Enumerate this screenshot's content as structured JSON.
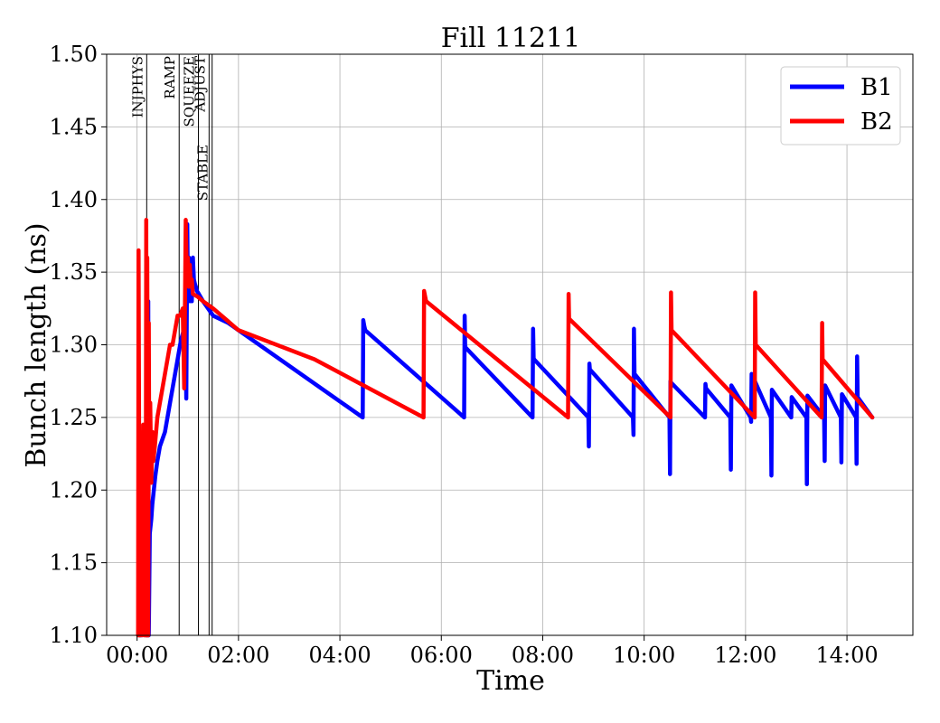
{
  "chart_data": {
    "type": "line",
    "title": "Fill 11211",
    "xlabel": "Time",
    "ylabel": "Bunch length (ns)",
    "x_unit": "hours",
    "xlim": [
      -0.6,
      15.3
    ],
    "ylim": [
      1.1,
      1.5
    ],
    "xticks": [
      {
        "value": 0,
        "label": "00:00"
      },
      {
        "value": 2,
        "label": "02:00"
      },
      {
        "value": 4,
        "label": "04:00"
      },
      {
        "value": 6,
        "label": "06:00"
      },
      {
        "value": 8,
        "label": "08:00"
      },
      {
        "value": 10,
        "label": "10:00"
      },
      {
        "value": 12,
        "label": "12:00"
      },
      {
        "value": 14,
        "label": "14:00"
      }
    ],
    "yticks": [
      {
        "value": 1.1,
        "label": "1.10"
      },
      {
        "value": 1.15,
        "label": "1.15"
      },
      {
        "value": 1.2,
        "label": "1.20"
      },
      {
        "value": 1.25,
        "label": "1.25"
      },
      {
        "value": 1.3,
        "label": "1.30"
      },
      {
        "value": 1.35,
        "label": "1.35"
      },
      {
        "value": 1.4,
        "label": "1.40"
      },
      {
        "value": 1.45,
        "label": "1.45"
      },
      {
        "value": 1.5,
        "label": "1.50"
      }
    ],
    "grid": true,
    "legend_position": "top-right",
    "phase_markers": [
      {
        "label": "INJPHYS",
        "x": 0.19,
        "label_level": "top"
      },
      {
        "label": "RAMP",
        "x": 0.83,
        "label_level": "top"
      },
      {
        "label": "SQUEEZE",
        "x": 1.21,
        "label_level": "top"
      },
      {
        "label": "ADJUST",
        "x": 1.42,
        "label_level": "top"
      },
      {
        "label": "STABLE",
        "x": 1.48,
        "label_level": "lower"
      }
    ],
    "series": [
      {
        "name": "B1",
        "color": "#0000ff",
        "x": [
          0.05,
          0.08,
          0.1,
          0.12,
          0.14,
          0.16,
          0.18,
          0.2,
          0.22,
          0.23,
          0.25,
          0.28,
          0.3,
          0.33,
          0.36,
          0.4,
          0.45,
          0.5,
          0.55,
          0.6,
          0.65,
          0.7,
          0.75,
          0.8,
          0.85,
          0.88,
          0.92,
          0.95,
          0.97,
          0.99,
          1.0,
          1.02,
          1.04,
          1.06,
          1.08,
          1.1,
          1.12,
          1.14,
          1.16,
          1.18,
          1.2,
          1.3,
          1.5,
          1.8,
          2.0,
          4.45,
          4.46,
          4.48,
          4.5,
          6.45,
          6.46,
          6.47,
          6.48,
          7.8,
          7.81,
          7.82,
          7.83,
          8.9,
          8.91,
          8.92,
          8.93,
          9.78,
          9.79,
          9.8,
          9.81,
          10.5,
          10.51,
          10.52,
          10.53,
          11.2,
          11.21,
          11.22,
          11.7,
          11.71,
          11.72,
          12.1,
          12.11,
          12.12,
          12.5,
          12.51,
          12.52,
          12.9,
          12.91,
          13.2,
          13.21,
          13.22,
          13.55,
          13.56,
          13.57,
          13.88,
          13.89,
          13.9,
          14.18,
          14.19,
          14.2,
          14.21,
          14.5
        ],
        "values": [
          1.1,
          1.1,
          1.11,
          1.11,
          1.12,
          1.14,
          1.1,
          1.1,
          1.33,
          1.1,
          1.17,
          1.18,
          1.19,
          1.2,
          1.21,
          1.22,
          1.23,
          1.235,
          1.24,
          1.25,
          1.26,
          1.27,
          1.28,
          1.29,
          1.3,
          1.305,
          1.31,
          1.32,
          1.263,
          1.383,
          1.34,
          1.36,
          1.33,
          1.355,
          1.33,
          1.36,
          1.345,
          1.342,
          1.34,
          1.337,
          1.336,
          1.33,
          1.32,
          1.315,
          1.31,
          1.25,
          1.317,
          1.313,
          1.31,
          1.25,
          1.32,
          1.3,
          1.298,
          1.25,
          1.311,
          1.291,
          1.29,
          1.25,
          1.23,
          1.287,
          1.283,
          1.25,
          1.238,
          1.311,
          1.28,
          1.25,
          1.211,
          1.275,
          1.274,
          1.25,
          1.273,
          1.27,
          1.25,
          1.214,
          1.272,
          1.25,
          1.247,
          1.28,
          1.25,
          1.21,
          1.269,
          1.25,
          1.264,
          1.25,
          1.204,
          1.265,
          1.25,
          1.22,
          1.272,
          1.25,
          1.219,
          1.266,
          1.25,
          1.218,
          1.292,
          1.264,
          1.25
        ]
      },
      {
        "name": "B2",
        "color": "#ff0000",
        "x": [
          0.02,
          0.03,
          0.05,
          0.06,
          0.08,
          0.1,
          0.12,
          0.14,
          0.16,
          0.17,
          0.18,
          0.19,
          0.2,
          0.22,
          0.23,
          0.24,
          0.26,
          0.28,
          0.3,
          0.32,
          0.35,
          0.4,
          0.45,
          0.5,
          0.55,
          0.6,
          0.65,
          0.7,
          0.75,
          0.8,
          0.85,
          0.9,
          0.93,
          0.96,
          0.98,
          1.0,
          1.02,
          1.04,
          1.06,
          1.08,
          1.1,
          1.15,
          1.2,
          1.3,
          1.5,
          2.0,
          3.5,
          5.65,
          5.66,
          5.7,
          8.5,
          8.51,
          8.52,
          10.52,
          10.53,
          10.54,
          12.18,
          12.19,
          12.2,
          13.5,
          13.51,
          13.52,
          14.5
        ],
        "values": [
          1.1,
          1.365,
          1.1,
          1.1,
          1.11,
          1.1,
          1.245,
          1.1,
          1.245,
          1.1,
          1.386,
          1.1,
          1.36,
          1.1,
          1.315,
          1.22,
          1.26,
          1.205,
          1.24,
          1.22,
          1.23,
          1.25,
          1.26,
          1.27,
          1.28,
          1.29,
          1.3,
          1.3,
          1.31,
          1.32,
          1.32,
          1.325,
          1.27,
          1.386,
          1.35,
          1.36,
          1.34,
          1.355,
          1.34,
          1.345,
          1.335,
          1.334,
          1.333,
          1.33,
          1.325,
          1.31,
          1.29,
          1.25,
          1.337,
          1.33,
          1.25,
          1.335,
          1.318,
          1.25,
          1.336,
          1.31,
          1.25,
          1.336,
          1.3,
          1.25,
          1.315,
          1.29,
          1.25
        ]
      }
    ]
  }
}
